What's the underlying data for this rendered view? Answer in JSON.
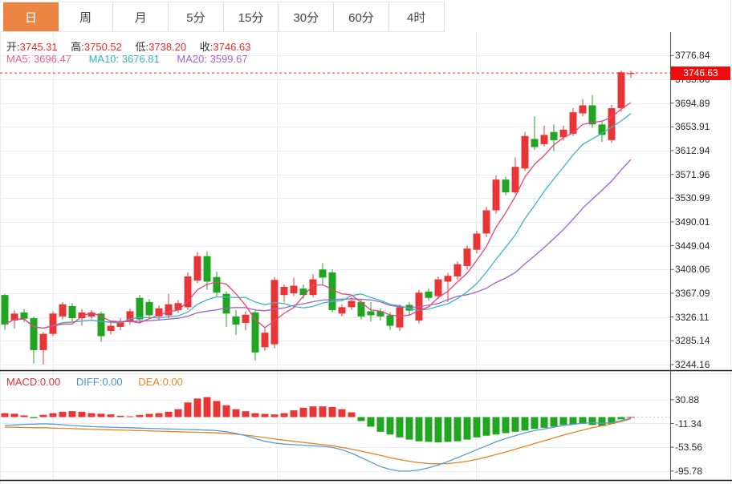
{
  "tabs": [
    {
      "id": "day",
      "label": "日",
      "active": true
    },
    {
      "id": "week",
      "label": "周",
      "active": false
    },
    {
      "id": "month",
      "label": "月",
      "active": false
    },
    {
      "id": "5min",
      "label": "5分",
      "active": false
    },
    {
      "id": "15min",
      "label": "15分",
      "active": false
    },
    {
      "id": "30min",
      "label": "30分",
      "active": false
    },
    {
      "id": "60min",
      "label": "60分",
      "active": false
    },
    {
      "id": "4hour",
      "label": "4时",
      "active": false
    }
  ],
  "ohlc": {
    "o_label": "开:",
    "o": "3745.31",
    "h_label": "高:",
    "h": "3750.52",
    "l_label": "低:",
    "l": "3738.20",
    "c_label": "收:",
    "c": "3746.63"
  },
  "ma": {
    "ma5": "MA5: 3696.47",
    "ma10": "MA10: 3676.81",
    "ma20": "MA20: 3599.67"
  },
  "macd_header": {
    "macd": "MACD:0.00",
    "diff": "DIFF:0.00",
    "dea": "DEA:0.00"
  },
  "price_axis": {
    "ticks": [
      "3776.84",
      "3735.86",
      "3694.89",
      "3653.91",
      "3612.94",
      "3571.96",
      "3530.99",
      "3490.01",
      "3449.04",
      "3408.06",
      "3367.09",
      "3326.11",
      "3285.14",
      "3244.16"
    ],
    "current": "3746.63"
  },
  "macd_axis": {
    "ticks": [
      "30.88",
      "-11.34",
      "-53.56",
      "-95.78"
    ]
  },
  "colors": {
    "up": "#e83636",
    "down": "#1fa51f",
    "ma5": "#e8437e",
    "ma10": "#39b7c6",
    "ma20": "#a261c9",
    "diff": "#5b9bd5",
    "dea": "#e8821e",
    "tab_accent": "#ea8544",
    "badge": "#ee0d0d",
    "grid": "#e9ecf0",
    "axis": "#555555",
    "price_line": "#fe2a2a",
    "zero_dotted": "#9fd2e8"
  },
  "chart_data": {
    "type": "candlestick",
    "x_count": 66,
    "panels": [
      {
        "name": "price",
        "y_axis": {
          "max": 3776.84,
          "min": 3244.16,
          "tick_step": 40.975
        },
        "current_price": 3746.63,
        "ma_periods": [
          5,
          10,
          20
        ],
        "candles": [
          [
            3364,
            3366,
            3304,
            3313
          ],
          [
            3320,
            3338,
            3306,
            3332
          ],
          [
            3334,
            3340,
            3317,
            3323
          ],
          [
            3324,
            3327,
            3246,
            3269
          ],
          [
            3269,
            3300,
            3244,
            3297
          ],
          [
            3297,
            3336,
            3293,
            3332
          ],
          [
            3327,
            3352,
            3322,
            3348
          ],
          [
            3345,
            3350,
            3318,
            3324
          ],
          [
            3324,
            3340,
            3311,
            3334
          ],
          [
            3327,
            3338,
            3322,
            3334
          ],
          [
            3332,
            3335,
            3283,
            3293
          ],
          [
            3302,
            3318,
            3296,
            3311
          ],
          [
            3309,
            3324,
            3303,
            3318
          ],
          [
            3318,
            3341,
            3313,
            3336
          ],
          [
            3359,
            3364,
            3317,
            3322
          ],
          [
            3352,
            3357,
            3323,
            3329
          ],
          [
            3327,
            3346,
            3321,
            3341
          ],
          [
            3329,
            3366,
            3324,
            3348
          ],
          [
            3338,
            3355,
            3333,
            3350
          ],
          [
            3343,
            3403,
            3338,
            3396
          ],
          [
            3389,
            3438,
            3384,
            3431
          ],
          [
            3431,
            3439,
            3373,
            3387
          ],
          [
            3395,
            3404,
            3360,
            3368
          ],
          [
            3366,
            3370,
            3309,
            3332
          ],
          [
            3327,
            3338,
            3295,
            3313
          ],
          [
            3316,
            3336,
            3303,
            3330
          ],
          [
            3334,
            3340,
            3251,
            3265
          ],
          [
            3274,
            3308,
            3268,
            3299
          ],
          [
            3279,
            3395,
            3272,
            3390
          ],
          [
            3364,
            3382,
            3352,
            3378
          ],
          [
            3367,
            3394,
            3362,
            3380
          ],
          [
            3375,
            3382,
            3357,
            3364
          ],
          [
            3364,
            3400,
            3360,
            3391
          ],
          [
            3408,
            3419,
            3382,
            3394
          ],
          [
            3403,
            3408,
            3334,
            3338
          ],
          [
            3332,
            3348,
            3327,
            3343
          ],
          [
            3343,
            3360,
            3338,
            3354
          ],
          [
            3352,
            3358,
            3322,
            3327
          ],
          [
            3336,
            3352,
            3318,
            3329
          ],
          [
            3336,
            3341,
            3320,
            3327
          ],
          [
            3329,
            3334,
            3304,
            3311
          ],
          [
            3308,
            3348,
            3302,
            3343
          ],
          [
            3347,
            3352,
            3330,
            3337
          ],
          [
            3320,
            3373,
            3315,
            3368
          ],
          [
            3370,
            3375,
            3354,
            3359
          ],
          [
            3362,
            3396,
            3357,
            3391
          ],
          [
            3387,
            3402,
            3352,
            3397
          ],
          [
            3396,
            3422,
            3390,
            3417
          ],
          [
            3414,
            3450,
            3408,
            3444
          ],
          [
            3442,
            3475,
            3436,
            3470
          ],
          [
            3470,
            3516,
            3464,
            3510
          ],
          [
            3510,
            3570,
            3504,
            3563
          ],
          [
            3563,
            3568,
            3536,
            3541
          ],
          [
            3541,
            3601,
            3538,
            3585
          ],
          [
            3582,
            3645,
            3578,
            3638
          ],
          [
            3633,
            3672,
            3614,
            3619
          ],
          [
            3624,
            3656,
            3620,
            3640
          ],
          [
            3645,
            3658,
            3612,
            3631
          ],
          [
            3636,
            3656,
            3630,
            3649
          ],
          [
            3642,
            3686,
            3638,
            3679
          ],
          [
            3677,
            3702,
            3672,
            3691
          ],
          [
            3691,
            3709,
            3652,
            3658
          ],
          [
            3658,
            3662,
            3628,
            3640
          ],
          [
            3631,
            3692,
            3626,
            3686
          ],
          [
            3686,
            3751,
            3680,
            3748
          ],
          [
            3745.31,
            3750.52,
            3738.2,
            3746.63
          ]
        ]
      },
      {
        "name": "macd",
        "y_axis": {
          "ticks": [
            30.88,
            -11.34,
            -53.56,
            -95.78
          ],
          "tick_step": 42.22
        },
        "histogram": [
          7,
          6,
          3,
          -2,
          4,
          7,
          9.5,
          10.5,
          9.5,
          7,
          6,
          4.7,
          2.4,
          1.4,
          3.8,
          5.7,
          7,
          9.5,
          14,
          26,
          33,
          35.5,
          28.5,
          21,
          14,
          10.4,
          7,
          5.7,
          4.7,
          7,
          12,
          16.6,
          19,
          19,
          18,
          14,
          8.5,
          -7,
          -17,
          -26,
          -31,
          -36,
          -40,
          -43,
          -44,
          -45,
          -44,
          -43,
          -40,
          -36,
          -33,
          -31,
          -28.5,
          -26,
          -24,
          -21,
          -19,
          -17,
          -14,
          -13,
          -12,
          -14,
          -16,
          -12,
          -4,
          0.3
        ],
        "diff": [
          -15,
          -14,
          -13,
          -12.5,
          -12,
          -12.5,
          -13.5,
          -15,
          -16,
          -17,
          -17.5,
          -18,
          -18.5,
          -19,
          -19.5,
          -20,
          -20.5,
          -21,
          -21.5,
          -22,
          -22.5,
          -23,
          -24,
          -26,
          -29,
          -33,
          -38,
          -43,
          -46,
          -48,
          -49,
          -50,
          -51,
          -52,
          -54,
          -58,
          -64,
          -72,
          -80,
          -88,
          -93,
          -96,
          -96,
          -94,
          -90,
          -85,
          -79,
          -72,
          -65,
          -58,
          -51,
          -44,
          -38,
          -33,
          -28,
          -24,
          -21,
          -18,
          -15,
          -13,
          -11,
          -10,
          -11,
          -10,
          -6,
          -2
        ],
        "dea": [
          -18,
          -18,
          -18.5,
          -19,
          -19,
          -19.5,
          -20,
          -20.5,
          -21,
          -21.5,
          -22,
          -22.5,
          -23,
          -23.5,
          -24,
          -24.5,
          -25,
          -25.5,
          -26,
          -26.5,
          -27,
          -27.5,
          -28,
          -29,
          -30.5,
          -32,
          -34,
          -36.5,
          -39,
          -41,
          -43,
          -45,
          -47,
          -49,
          -51,
          -54,
          -57,
          -60.5,
          -64,
          -68,
          -72,
          -75.5,
          -78.5,
          -81,
          -82.5,
          -83,
          -82.5,
          -81,
          -78.5,
          -75,
          -71,
          -66.5,
          -62,
          -57,
          -52,
          -47,
          -42,
          -37,
          -32,
          -27.5,
          -23,
          -19,
          -15.5,
          -12,
          -8,
          -3
        ]
      }
    ]
  }
}
